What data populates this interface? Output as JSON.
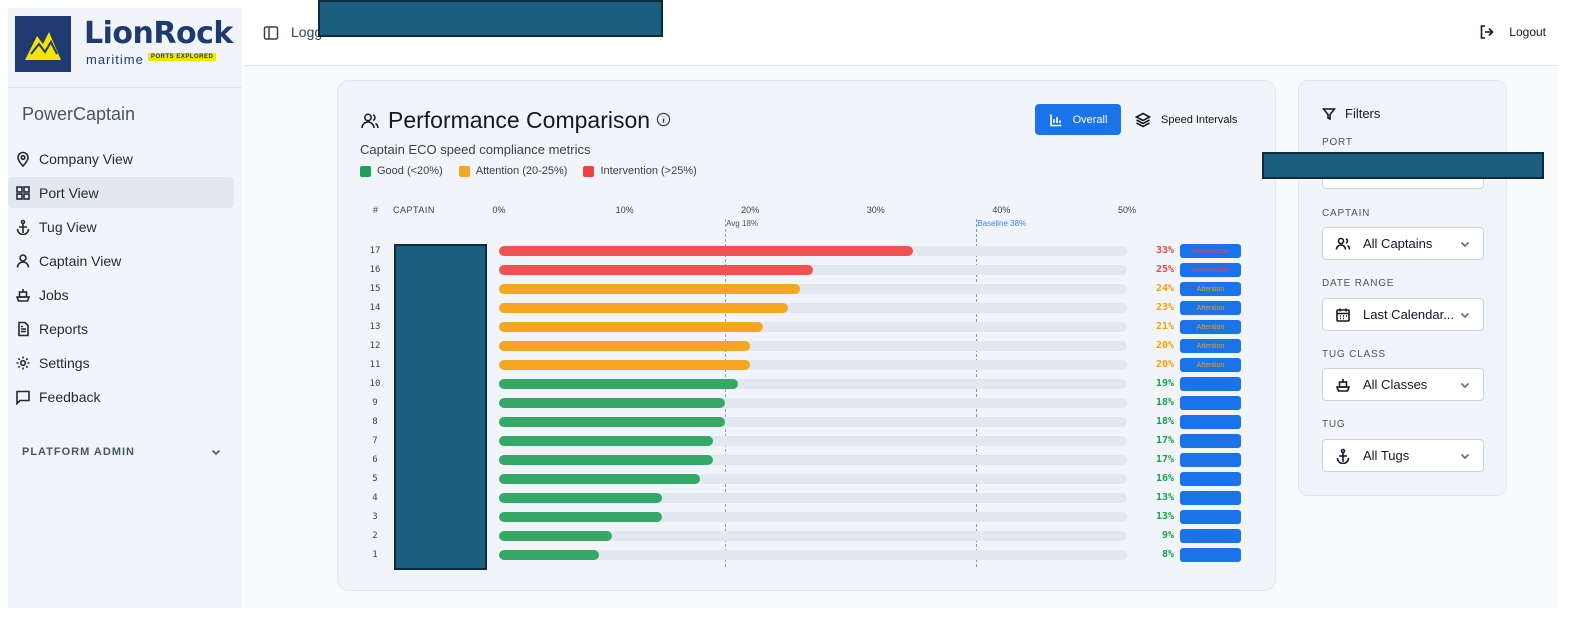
{
  "brand": {
    "name": "LionRock",
    "sub": "maritime",
    "tag": "PORTS EXPLORED"
  },
  "app_name": "PowerCaptain",
  "nav": [
    {
      "label": "Company View",
      "icon": "map-pin-icon",
      "active": false
    },
    {
      "label": "Port View",
      "icon": "grid-icon",
      "active": true
    },
    {
      "label": "Tug View",
      "icon": "anchor-icon",
      "active": false
    },
    {
      "label": "Captain View",
      "icon": "user-icon",
      "active": false
    },
    {
      "label": "Jobs",
      "icon": "ship-icon",
      "active": false
    },
    {
      "label": "Reports",
      "icon": "document-icon",
      "active": false
    },
    {
      "label": "Settings",
      "icon": "gear-icon",
      "active": false
    },
    {
      "label": "Feedback",
      "icon": "message-icon",
      "active": false
    }
  ],
  "platform_admin": "PLATFORM ADMIN",
  "topbar": {
    "label": "Logg",
    "logout": "Logout"
  },
  "card": {
    "title": "Performance Comparison",
    "subtitle": "Captain ECO speed compliance metrics",
    "btn_overall": "Overall",
    "btn_speed": "Speed Intervals",
    "legend": [
      {
        "label": "Good (<20%)",
        "color": "#22a05a"
      },
      {
        "label": "Attention (20-25%)",
        "color": "#f5a623"
      },
      {
        "label": "Intervention (>25%)",
        "color": "#ef4444"
      }
    ],
    "col_rank": "#",
    "col_captain": "CAPTAIN",
    "avg_label": "Avg 18%",
    "baseline_label": "Baseline 38%"
  },
  "chart_data": {
    "type": "bar",
    "orientation": "horizontal",
    "x_ticks": [
      "0%",
      "10%",
      "20%",
      "30%",
      "40%",
      "50%"
    ],
    "xlim": [
      0,
      50
    ],
    "reference_lines": [
      {
        "label": "Avg 18%",
        "value": 18
      },
      {
        "label": "Baseline 38%",
        "value": 38
      }
    ],
    "rows": [
      {
        "rank": "17",
        "value": 33,
        "pct": "33%",
        "status": "Intervention"
      },
      {
        "rank": "16",
        "value": 25,
        "pct": "25%",
        "status": "Intervention"
      },
      {
        "rank": "15",
        "value": 24,
        "pct": "24%",
        "status": "Attention"
      },
      {
        "rank": "14",
        "value": 23,
        "pct": "23%",
        "status": "Attention"
      },
      {
        "rank": "13",
        "value": 21,
        "pct": "21%",
        "status": "Attention"
      },
      {
        "rank": "12",
        "value": 20,
        "pct": "20%",
        "status": "Attention"
      },
      {
        "rank": "11",
        "value": 20,
        "pct": "20%",
        "status": "Attention"
      },
      {
        "rank": "10",
        "value": 19,
        "pct": "19%",
        "status": "Good"
      },
      {
        "rank": "9",
        "value": 18,
        "pct": "18%",
        "status": "Good"
      },
      {
        "rank": "8",
        "value": 18,
        "pct": "18%",
        "status": "Good"
      },
      {
        "rank": "7",
        "value": 17,
        "pct": "17%",
        "status": "Good"
      },
      {
        "rank": "6",
        "value": 17,
        "pct": "17%",
        "status": "Good"
      },
      {
        "rank": "5",
        "value": 16,
        "pct": "16%",
        "status": "Good"
      },
      {
        "rank": "4",
        "value": 13,
        "pct": "13%",
        "status": "Good"
      },
      {
        "rank": "3",
        "value": 13,
        "pct": "13%",
        "status": "Good"
      },
      {
        "rank": "2",
        "value": 9,
        "pct": "9%",
        "status": "Good"
      },
      {
        "rank": "1",
        "value": 8,
        "pct": "8%",
        "status": "Good"
      }
    ],
    "colors": {
      "Good": "#34a866",
      "Attention": "#f5a623",
      "Intervention": "#ef5350"
    }
  },
  "filters": {
    "title": "Filters",
    "port_label": "PORT",
    "captain_label": "CAPTAIN",
    "captain_value": "All Captains",
    "date_label": "DATE RANGE",
    "date_value": "Last Calendar...",
    "tugclass_label": "TUG CLASS",
    "tugclass_value": "All Classes",
    "tug_label": "TUG",
    "tug_value": "All Tugs"
  }
}
